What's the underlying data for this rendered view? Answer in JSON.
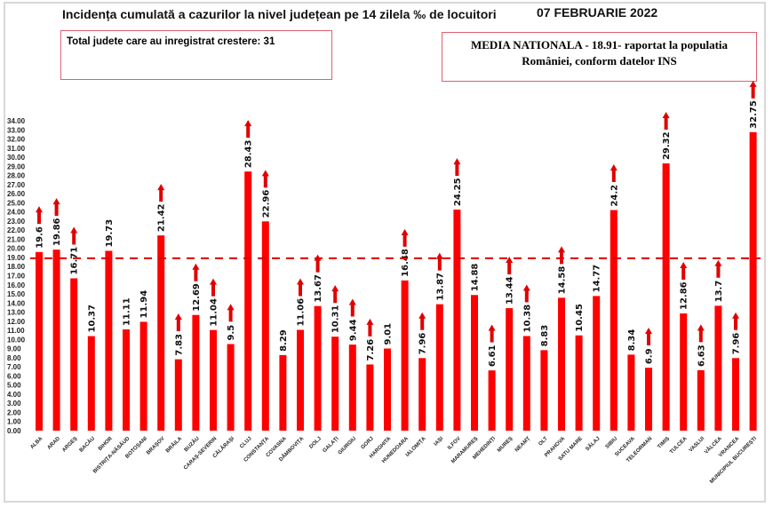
{
  "chart_data": {
    "type": "bar",
    "title": "Incidența cumulată a cazurilor la nivel județean pe 14 zilela ‰ de locuitori",
    "date": "07 FEBRUARIE 2022",
    "note_increase": "Total judete care au inregistrat crestere: 31",
    "note_average_line1": "MEDIA NATIONALA - 18.91-  raportat la populatia",
    "note_average_line2": "României, conform datelor INS",
    "reference_line": 18.91,
    "ylim": [
      0,
      34
    ],
    "ytick_step": 1,
    "grid": false,
    "bar_color": "#ff0000",
    "categories": [
      "ALBA",
      "ARAD",
      "ARGEȘ",
      "BACĂU",
      "BIHOR",
      "BISTRIȚA-NĂSĂUD",
      "BOTOȘANI",
      "BRAȘOV",
      "BRĂILA",
      "BUZĂU",
      "CARAȘ-SEVERIN",
      "CĂLĂRAȘI",
      "CLUJ",
      "CONSTANȚA",
      "COVASNA",
      "DÂMBOVIȚA",
      "DOLJ",
      "GALAȚI",
      "GIURGIU",
      "GORJ",
      "HARGHITA",
      "HUNEDOARA",
      "IALOMIȚA",
      "IAȘI",
      "ILFOV",
      "MARAMUREȘ",
      "MEHEDINȚI",
      "MUREȘ",
      "NEAMȚ",
      "OLT",
      "PRAHOVA",
      "SATU MARE",
      "SĂLAJ",
      "SIBIU",
      "SUCEAVA",
      "TELEORMAN",
      "TIMIȘ",
      "TULCEA",
      "VASLUI",
      "VÂLCEA",
      "VRANCEA",
      "MUNICIPIUL BUCUREȘTI"
    ],
    "values": [
      19.6,
      19.86,
      16.71,
      10.37,
      19.73,
      11.11,
      11.94,
      21.42,
      7.83,
      12.69,
      11.04,
      9.5,
      28.43,
      22.96,
      8.29,
      11.06,
      13.67,
      10.31,
      9.44,
      7.26,
      9.01,
      16.48,
      7.96,
      13.87,
      24.25,
      14.88,
      6.61,
      13.44,
      10.38,
      8.83,
      14.58,
      10.45,
      14.77,
      24.2,
      8.34,
      6.9,
      29.32,
      12.86,
      6.63,
      13.7,
      7.96,
      32.75
    ],
    "increase": [
      true,
      true,
      true,
      false,
      false,
      false,
      false,
      true,
      true,
      true,
      true,
      true,
      true,
      true,
      false,
      true,
      true,
      true,
      true,
      true,
      false,
      true,
      true,
      true,
      true,
      false,
      true,
      true,
      true,
      false,
      true,
      false,
      false,
      true,
      false,
      true,
      true,
      true,
      true,
      true,
      true,
      true
    ]
  }
}
